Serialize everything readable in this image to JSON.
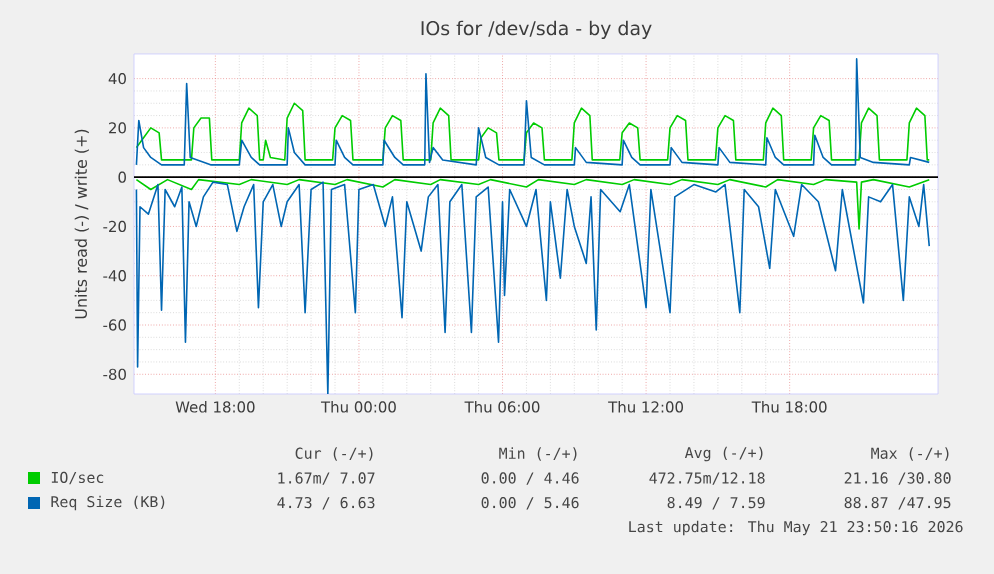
{
  "chart_data": {
    "type": "line",
    "title": "IOs for /dev/sda - by day",
    "ylabel": "Units read (-) / write (+)",
    "xlim": [
      "2026-05-20T14:36",
      "2026-05-22T00:12"
    ],
    "ylim": [
      -88,
      50
    ],
    "xticks": [
      {
        "value": "2026-05-20T18:00",
        "label": "Wed 18:00"
      },
      {
        "value": "2026-05-21T00:00",
        "label": "Thu 00:00"
      },
      {
        "value": "2026-05-21T06:00",
        "label": "Thu 06:00"
      },
      {
        "value": "2026-05-21T12:00",
        "label": "Thu 12:00"
      },
      {
        "value": "2026-05-21T18:00",
        "label": "Thu 18:00"
      }
    ],
    "yticks": [
      -80,
      -60,
      -40,
      -20,
      0,
      20,
      40
    ],
    "grid": true,
    "legend": "bottom left",
    "annotations": [
      "Cur (-/+)",
      "Min (-/+)",
      "Avg (-/+)",
      "Max (-/+)",
      "1.67m/ 7.07",
      "0.00 / 4.46",
      "472.75m/12.18",
      "21.16 /30.80",
      "4.73 / 6.63",
      "0.00 / 5.46",
      "8.49 / 7.59",
      "88.87 /47.95",
      "Last update: Thu May 21 23:50:16 2026"
    ],
    "series": [
      {
        "color": "#00cc00",
        "x": [
          "2026-05-20T14:42",
          "2026-05-20T15:18",
          "2026-05-20T16:00",
          "2026-05-20T17:00",
          "2026-05-20T17:18",
          "2026-05-20T19:00",
          "2026-05-20T19:30",
          "2026-05-20T21:00",
          "2026-05-20T21:30",
          "2026-05-20T23:00",
          "2026-05-20T23:30",
          "2026-05-21T01:00",
          "2026-05-21T01:30",
          "2026-05-21T03:00",
          "2026-05-21T03:24",
          "2026-05-21T05:00",
          "2026-05-21T05:30",
          "2026-05-21T07:00",
          "2026-05-21T07:30",
          "2026-05-21T09:00",
          "2026-05-21T09:30",
          "2026-05-21T11:00",
          "2026-05-21T11:30",
          "2026-05-21T13:00",
          "2026-05-21T13:30",
          "2026-05-21T15:00",
          "2026-05-21T15:30",
          "2026-05-21T17:00",
          "2026-05-21T17:30",
          "2026-05-21T19:00",
          "2026-05-21T19:30",
          "2026-05-21T20:48",
          "2026-05-21T20:54",
          "2026-05-21T21:00",
          "2026-05-21T21:30",
          "2026-05-21T23:00",
          "2026-05-21T23:50"
        ],
        "values": [
          -1,
          -5,
          -1,
          -5,
          -1,
          -3,
          -1,
          -3,
          -1,
          -3,
          -1,
          -4,
          -1,
          -3,
          -1,
          -3,
          -1,
          -4,
          -1,
          -3,
          -1,
          -3,
          -1,
          -3,
          -1,
          -3,
          -1,
          -4,
          -1,
          -3,
          -1,
          -2,
          -21,
          -2,
          -1,
          -4,
          -1
        ]
      },
      {
        "name": "IO/sec",
        "color": "#00cc00",
        "x": [
          "2026-05-20T14:42",
          "2026-05-20T15:00",
          "2026-05-20T15:18",
          "2026-05-20T15:39",
          "2026-05-20T15:45",
          "2026-05-20T17:00",
          "2026-05-20T17:06",
          "2026-05-20T17:24",
          "2026-05-20T17:45",
          "2026-05-20T17:51",
          "2026-05-20T19:00",
          "2026-05-20T19:06",
          "2026-05-20T19:24",
          "2026-05-20T19:45",
          "2026-05-20T19:51",
          "2026-05-20T20:00",
          "2026-05-20T20:06",
          "2026-05-20T20:18",
          "2026-05-20T20:54",
          "2026-05-20T21:00",
          "2026-05-20T21:18",
          "2026-05-20T21:39",
          "2026-05-20T21:45",
          "2026-05-20T22:54",
          "2026-05-20T23:00",
          "2026-05-20T23:18",
          "2026-05-20T23:39",
          "2026-05-20T23:45",
          "2026-05-21T01:00",
          "2026-05-21T01:06",
          "2026-05-21T01:24",
          "2026-05-21T01:45",
          "2026-05-21T01:51",
          "2026-05-21T03:00",
          "2026-05-21T03:06",
          "2026-05-21T03:24",
          "2026-05-21T03:45",
          "2026-05-21T03:51",
          "2026-05-21T05:00",
          "2026-05-21T05:06",
          "2026-05-21T05:24",
          "2026-05-21T05:45",
          "2026-05-21T05:51",
          "2026-05-21T06:54",
          "2026-05-21T07:00",
          "2026-05-21T07:18",
          "2026-05-21T07:39",
          "2026-05-21T07:45",
          "2026-05-21T08:54",
          "2026-05-21T09:00",
          "2026-05-21T09:18",
          "2026-05-21T09:39",
          "2026-05-21T09:45",
          "2026-05-21T10:54",
          "2026-05-21T11:00",
          "2026-05-21T11:18",
          "2026-05-21T11:39",
          "2026-05-21T11:45",
          "2026-05-21T12:54",
          "2026-05-21T13:00",
          "2026-05-21T13:18",
          "2026-05-21T13:39",
          "2026-05-21T13:45",
          "2026-05-21T14:54",
          "2026-05-21T15:00",
          "2026-05-21T15:18",
          "2026-05-21T15:39",
          "2026-05-21T15:45",
          "2026-05-21T16:54",
          "2026-05-21T17:00",
          "2026-05-21T17:18",
          "2026-05-21T17:39",
          "2026-05-21T17:45",
          "2026-05-21T18:54",
          "2026-05-21T19:00",
          "2026-05-21T19:18",
          "2026-05-21T19:39",
          "2026-05-21T19:45",
          "2026-05-21T20:54",
          "2026-05-21T21:00",
          "2026-05-21T21:18",
          "2026-05-21T21:39",
          "2026-05-21T21:45",
          "2026-05-21T22:54",
          "2026-05-21T23:00",
          "2026-05-21T23:18",
          "2026-05-21T23:39",
          "2026-05-21T23:45",
          "2026-05-21T23:50"
        ],
        "values": [
          12,
          16,
          20,
          18,
          7,
          7,
          20,
          24,
          24,
          7,
          7,
          22,
          28,
          25,
          7,
          7,
          15,
          8,
          7,
          24,
          30,
          27,
          7,
          7,
          20,
          25,
          23,
          7,
          7,
          20,
          25,
          23,
          7,
          7,
          22,
          28,
          25,
          7,
          7,
          16,
          20,
          18,
          7,
          7,
          18,
          22,
          20,
          7,
          7,
          22,
          28,
          25,
          7,
          7,
          18,
          22,
          20,
          7,
          7,
          20,
          25,
          23,
          7,
          7,
          20,
          25,
          23,
          7,
          7,
          22,
          28,
          25,
          7,
          7,
          20,
          25,
          23,
          7,
          7,
          22,
          28,
          25,
          7,
          7,
          22,
          28,
          25,
          7,
          7
        ]
      },
      {
        "color": "#0066b3",
        "x": [
          "2026-05-20T14:42",
          "2026-05-20T14:45",
          "2026-05-20T14:51",
          "2026-05-20T15:12",
          "2026-05-20T15:36",
          "2026-05-20T15:45",
          "2026-05-20T15:54",
          "2026-05-20T16:18",
          "2026-05-20T16:36",
          "2026-05-20T16:45",
          "2026-05-20T16:54",
          "2026-05-20T17:12",
          "2026-05-20T17:30",
          "2026-05-20T17:54",
          "2026-05-20T18:30",
          "2026-05-20T18:54",
          "2026-05-20T19:12",
          "2026-05-20T19:36",
          "2026-05-20T19:48",
          "2026-05-20T20:00",
          "2026-05-20T20:24",
          "2026-05-20T20:45",
          "2026-05-20T21:00",
          "2026-05-20T21:30",
          "2026-05-20T21:45",
          "2026-05-20T22:00",
          "2026-05-20T22:30",
          "2026-05-20T22:42",
          "2026-05-20T22:51",
          "2026-05-20T23:24",
          "2026-05-20T23:51",
          "2026-05-21T00:00",
          "2026-05-21T00:36",
          "2026-05-21T01:06",
          "2026-05-21T01:24",
          "2026-05-21T01:48",
          "2026-05-21T02:00",
          "2026-05-21T02:36",
          "2026-05-21T02:54",
          "2026-05-21T03:18",
          "2026-05-21T03:36",
          "2026-05-21T03:48",
          "2026-05-21T04:18",
          "2026-05-21T04:42",
          "2026-05-21T04:54",
          "2026-05-21T05:24",
          "2026-05-21T05:50",
          "2026-05-21T06:00",
          "2026-05-21T06:05",
          "2026-05-21T06:18",
          "2026-05-21T07:00",
          "2026-05-21T07:24",
          "2026-05-21T07:50",
          "2026-05-21T08:00",
          "2026-05-21T08:25",
          "2026-05-21T08:42",
          "2026-05-21T09:00",
          "2026-05-21T09:30",
          "2026-05-21T09:42",
          "2026-05-21T09:55",
          "2026-05-21T10:06",
          "2026-05-21T10:55",
          "2026-05-21T11:18",
          "2026-05-21T12:00",
          "2026-05-21T12:12",
          "2026-05-21T13:00",
          "2026-05-21T13:12",
          "2026-05-21T14:00",
          "2026-05-21T14:55",
          "2026-05-21T15:18",
          "2026-05-21T15:55",
          "2026-05-21T16:06",
          "2026-05-21T16:42",
          "2026-05-21T17:10",
          "2026-05-21T17:24",
          "2026-05-21T18:10",
          "2026-05-21T18:30",
          "2026-05-21T19:12",
          "2026-05-21T19:55",
          "2026-05-21T20:12",
          "2026-05-21T21:05",
          "2026-05-21T21:18",
          "2026-05-21T21:48",
          "2026-05-21T22:18",
          "2026-05-21T22:45",
          "2026-05-21T23:00",
          "2026-05-21T23:24",
          "2026-05-21T23:36",
          "2026-05-21T23:50"
        ],
        "values": [
          -5,
          -77,
          -12,
          -15,
          -3,
          -54,
          -5,
          -12,
          -4,
          -67,
          -10,
          -20,
          -8,
          -2,
          -3,
          -22,
          -12,
          -3,
          -53,
          -10,
          -3,
          -20,
          -10,
          -3,
          -55,
          -5,
          -2,
          -88,
          -5,
          -3,
          -55,
          -5,
          -3,
          -20,
          -8,
          -57,
          -10,
          -30,
          -8,
          -3,
          -63,
          -10,
          -3,
          -63,
          -8,
          -4,
          -67,
          -10,
          -48,
          -5,
          -20,
          -5,
          -50,
          -10,
          -41,
          -5,
          -20,
          -35,
          -8,
          -62,
          -5,
          -14,
          -3,
          -53,
          -5,
          -55,
          -8,
          -3,
          -6,
          -3,
          -55,
          -5,
          -12,
          -37,
          -5,
          -24,
          -3,
          -10,
          -38,
          -5,
          -51,
          -8,
          -10,
          -3,
          -50,
          -8,
          -20,
          -3,
          -28
        ]
      },
      {
        "name": "Req Size (KB)",
        "color": "#0066b3",
        "x": [
          "2026-05-20T14:42",
          "2026-05-20T14:48",
          "2026-05-20T15:00",
          "2026-05-20T15:18",
          "2026-05-20T15:45",
          "2026-05-20T16:42",
          "2026-05-20T16:48",
          "2026-05-20T16:57",
          "2026-05-20T17:48",
          "2026-05-20T19:00",
          "2026-05-20T19:06",
          "2026-05-20T19:30",
          "2026-05-20T19:51",
          "2026-05-20T21:00",
          "2026-05-20T21:03",
          "2026-05-20T21:18",
          "2026-05-20T21:45",
          "2026-05-20T23:00",
          "2026-05-20T23:03",
          "2026-05-20T23:24",
          "2026-05-20T23:45",
          "2026-05-21T01:00",
          "2026-05-21T01:03",
          "2026-05-21T01:30",
          "2026-05-21T01:51",
          "2026-05-21T02:45",
          "2026-05-21T02:48",
          "2026-05-21T02:57",
          "2026-05-21T03:06",
          "2026-05-21T03:30",
          "2026-05-21T04:54",
          "2026-05-21T05:00",
          "2026-05-21T05:18",
          "2026-05-21T05:51",
          "2026-05-21T06:54",
          "2026-05-21T07:00",
          "2026-05-21T07:12",
          "2026-05-21T07:45",
          "2026-05-21T09:00",
          "2026-05-21T09:03",
          "2026-05-21T09:30",
          "2026-05-21T11:00",
          "2026-05-21T11:03",
          "2026-05-21T11:24",
          "2026-05-21T11:45",
          "2026-05-21T13:00",
          "2026-05-21T13:03",
          "2026-05-21T13:30",
          "2026-05-21T15:00",
          "2026-05-21T15:03",
          "2026-05-21T15:30",
          "2026-05-21T17:00",
          "2026-05-21T17:03",
          "2026-05-21T17:24",
          "2026-05-21T17:45",
          "2026-05-21T19:00",
          "2026-05-21T19:03",
          "2026-05-21T19:24",
          "2026-05-21T19:45",
          "2026-05-21T20:45",
          "2026-05-21T20:48",
          "2026-05-21T20:57",
          "2026-05-21T21:30",
          "2026-05-21T23:00",
          "2026-05-21T23:03",
          "2026-05-21T23:50"
        ],
        "values": [
          5,
          23,
          12,
          8,
          5,
          5,
          38,
          8,
          5,
          5,
          15,
          8,
          5,
          5,
          20,
          10,
          5,
          5,
          15,
          8,
          5,
          5,
          15,
          8,
          5,
          5,
          42,
          6,
          12,
          7,
          5,
          20,
          8,
          5,
          5,
          31,
          8,
          5,
          5,
          12,
          6,
          5,
          15,
          8,
          5,
          5,
          12,
          6,
          5,
          12,
          6,
          5,
          16,
          8,
          5,
          5,
          17,
          8,
          5,
          5,
          48,
          8,
          6,
          5,
          8,
          6
        ]
      }
    ]
  }
}
